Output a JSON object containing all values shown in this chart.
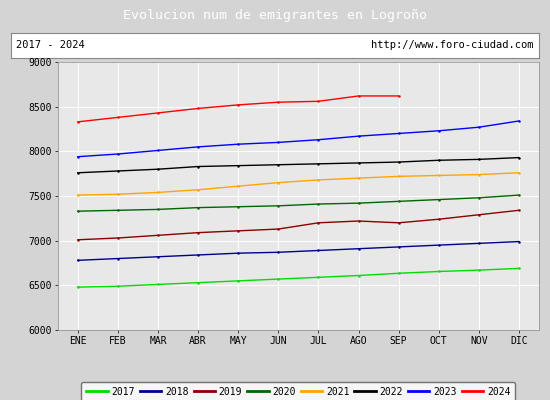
{
  "title": "Evolucion num de emigrantes en Logroño",
  "subtitle_left": "2017 - 2024",
  "subtitle_right": "http://www.foro-ciudad.com",
  "months": [
    "ENE",
    "FEB",
    "MAR",
    "ABR",
    "MAY",
    "JUN",
    "JUL",
    "AGO",
    "SEP",
    "OCT",
    "NOV",
    "DIC"
  ],
  "series": {
    "2017": {
      "color": "#00dd00",
      "data": [
        6480,
        6490,
        6510,
        6530,
        6550,
        6570,
        6590,
        6610,
        6635,
        6655,
        6670,
        6690
      ]
    },
    "2018": {
      "color": "#00008b",
      "data": [
        6780,
        6800,
        6820,
        6840,
        6860,
        6870,
        6890,
        6910,
        6930,
        6950,
        6970,
        6990
      ]
    },
    "2019": {
      "color": "#8b0000",
      "data": [
        7010,
        7030,
        7060,
        7090,
        7110,
        7130,
        7200,
        7220,
        7200,
        7240,
        7290,
        7340
      ]
    },
    "2020": {
      "color": "#006600",
      "data": [
        7330,
        7340,
        7350,
        7370,
        7380,
        7390,
        7410,
        7420,
        7440,
        7460,
        7480,
        7510
      ]
    },
    "2021": {
      "color": "#ffa500",
      "data": [
        7510,
        7520,
        7540,
        7570,
        7610,
        7650,
        7680,
        7700,
        7720,
        7730,
        7740,
        7760
      ]
    },
    "2022": {
      "color": "#000000",
      "data": [
        7760,
        7780,
        7800,
        7830,
        7840,
        7850,
        7860,
        7870,
        7880,
        7900,
        7910,
        7930
      ]
    },
    "2023": {
      "color": "#0000ff",
      "data": [
        7940,
        7970,
        8010,
        8050,
        8080,
        8100,
        8130,
        8170,
        8200,
        8230,
        8270,
        8340
      ]
    },
    "2024": {
      "color": "#ff0000",
      "data": [
        8330,
        8380,
        8430,
        8480,
        8520,
        8550,
        8560,
        8620,
        8620,
        null,
        null,
        null
      ]
    }
  },
  "ylim": [
    6000,
    9000
  ],
  "yticks": [
    6000,
    6500,
    7000,
    7500,
    8000,
    8500,
    9000
  ],
  "bg_color": "#d4d4d4",
  "plot_bg_color": "#e8e8e8",
  "title_bg_color": "#4f81bd",
  "title_text_color": "#ffffff",
  "grid_color": "#ffffff",
  "subtitle_bg": "#ffffff",
  "legend_years": [
    "2017",
    "2018",
    "2019",
    "2020",
    "2021",
    "2022",
    "2023",
    "2024"
  ]
}
